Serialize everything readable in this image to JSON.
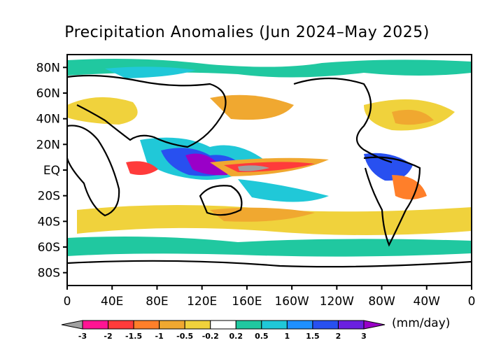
{
  "title": "Precipitation Anomalies (Jun 2024–May 2025)",
  "units": "(mm/day)",
  "lat_labels": [
    "80N",
    "60N",
    "40N",
    "20N",
    "EQ",
    "20S",
    "40S",
    "60S",
    "80S"
  ],
  "lat_values": [
    80,
    60,
    40,
    20,
    0,
    -20,
    -40,
    -60,
    -80
  ],
  "lon_labels": [
    "0",
    "40E",
    "80E",
    "120E",
    "160E",
    "160W",
    "120W",
    "80W",
    "40W",
    "0"
  ],
  "lon_values": [
    0,
    40,
    80,
    120,
    160,
    200,
    240,
    280,
    320,
    360
  ],
  "colorbar": {
    "labels": [
      "-3",
      "-2",
      "-1.5",
      "-1",
      "-0.5",
      "-0.2",
      "0.2",
      "0.5",
      "1",
      "1.5",
      "2",
      "3"
    ],
    "colors": [
      "#a0a0a0",
      "#ff1493",
      "#ff3b3b",
      "#ff7f2a",
      "#f0a830",
      "#f0d23c",
      "#ffffff",
      "#20c8a0",
      "#20c8d8",
      "#1e90ff",
      "#2850f0",
      "#6a20e0",
      "#9a00c8"
    ]
  }
}
